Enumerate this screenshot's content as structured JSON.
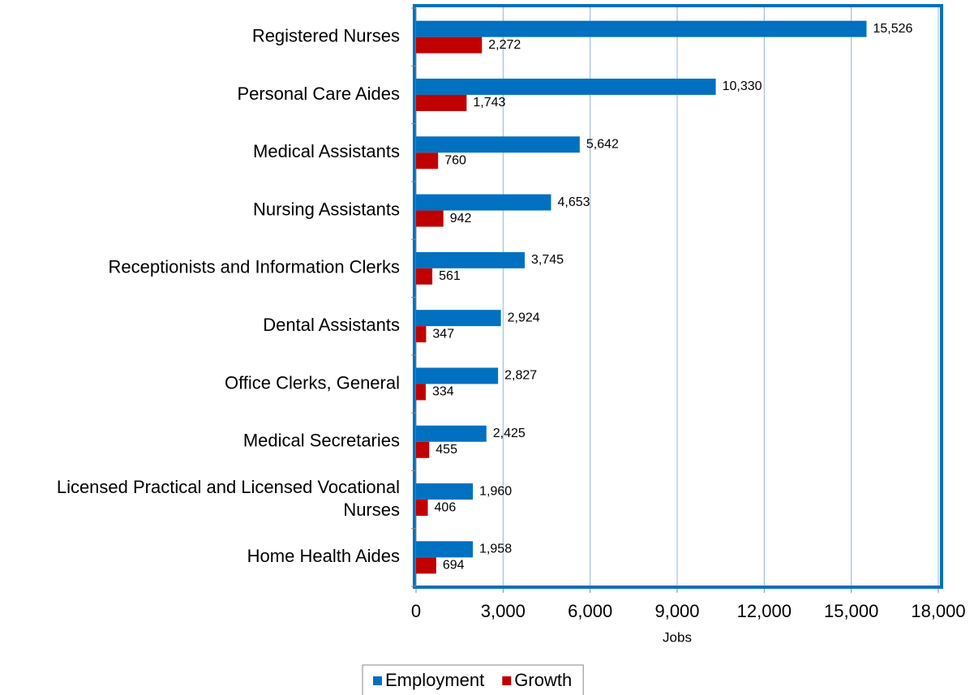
{
  "chart_data": {
    "type": "hbar",
    "categories": [
      "Registered Nurses",
      "Personal Care Aides",
      "Medical Assistants",
      "Nursing Assistants",
      "Receptionists and Information Clerks",
      "Dental Assistants",
      "Office Clerks, General",
      "Medical Secretaries",
      "Licensed Practical and Licensed Vocational Nurses",
      "Home Health Aides"
    ],
    "series": [
      {
        "name": "Employment",
        "color": "#0070c0",
        "values": [
          15526,
          10330,
          5642,
          4653,
          3745,
          2924,
          2827,
          2425,
          1960,
          1958
        ],
        "value_labels": [
          "15,526",
          "10,330",
          "5,642",
          "4,653",
          "3,745",
          "2,924",
          "2,827",
          "2,425",
          "1,960",
          "1,958"
        ]
      },
      {
        "name": "Growth",
        "color": "#c00000",
        "values": [
          2272,
          1743,
          760,
          942,
          561,
          347,
          334,
          455,
          406,
          694
        ],
        "value_labels": [
          "2,272",
          "1,743",
          "760",
          "942",
          "561",
          "347",
          "334",
          "455",
          "406",
          "694"
        ]
      }
    ],
    "x_label": "Jobs",
    "xlim": [
      0,
      18000
    ],
    "xticks": [
      0,
      {
        "value": 3000,
        "label": "3,000"
      },
      {
        "value": 6000,
        "label": "6,000"
      },
      {
        "value": 9000,
        "label": "9,000"
      },
      {
        "value": 12000,
        "label": "12,000"
      },
      {
        "value": 15000,
        "label": "15,000"
      },
      {
        "value": 18000,
        "label": "18,000"
      }
    ],
    "grid": true,
    "legend": "bottom",
    "frame_color": "#0070c0",
    "grid_color": "#8db4e2"
  }
}
